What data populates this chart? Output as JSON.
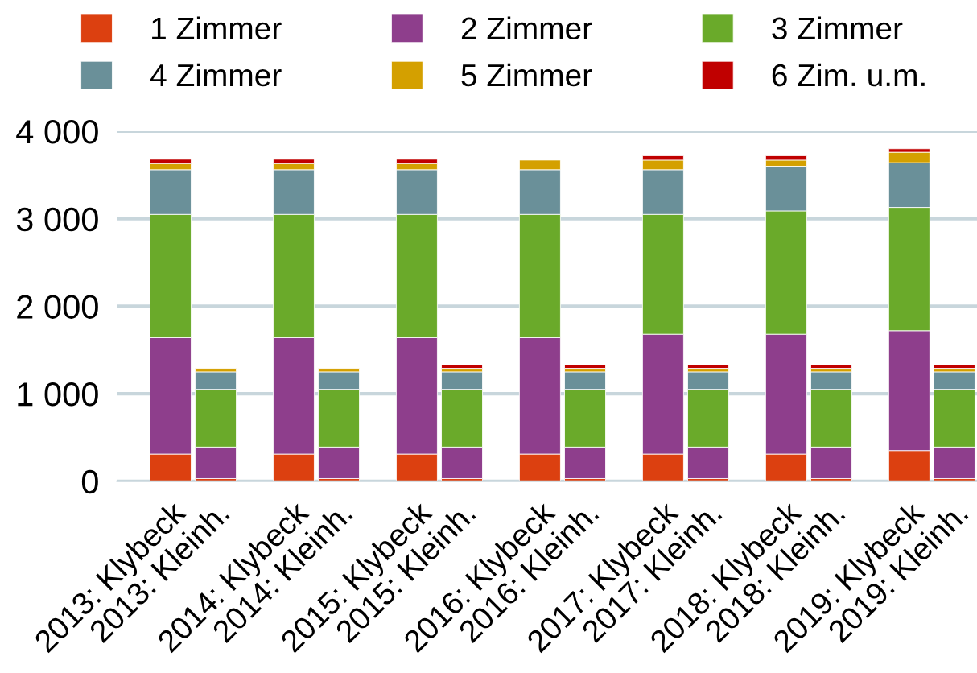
{
  "chart_data": {
    "type": "bar",
    "stacked": true,
    "categories": [
      "2013: Klybeck",
      "2013: Kleinh.",
      "2014: Klybeck",
      "2014: Kleinh.",
      "2015: Klybeck",
      "2015: Kleinh.",
      "2016: Klybeck",
      "2016: Kleinh.",
      "2017: Klybeck",
      "2017: Kleinh.",
      "2018: Klybeck",
      "2018: Kleinh.",
      "2019: Klybeck",
      "2019: Kleinh."
    ],
    "series": [
      {
        "name": "1 Zimmer",
        "color": "#dc4010",
        "values": [
          310,
          30,
          310,
          30,
          310,
          30,
          310,
          30,
          310,
          30,
          310,
          30,
          350,
          30
        ]
      },
      {
        "name": "2 Zimmer",
        "color": "#8e3e8c",
        "values": [
          1330,
          360,
          1330,
          360,
          1330,
          360,
          1330,
          360,
          1370,
          360,
          1370,
          360,
          1370,
          360
        ]
      },
      {
        "name": "3 Zimmer",
        "color": "#6aaa2a",
        "values": [
          1410,
          660,
          1410,
          660,
          1410,
          660,
          1410,
          660,
          1370,
          660,
          1410,
          660,
          1410,
          660
        ]
      },
      {
        "name": "4 Zimmer",
        "color": "#6a9099",
        "values": [
          510,
          200,
          510,
          200,
          510,
          200,
          510,
          200,
          510,
          200,
          510,
          200,
          510,
          200
        ]
      },
      {
        "name": "5 Zimmer",
        "color": "#d4a000",
        "values": [
          70,
          40,
          70,
          40,
          70,
          40,
          110,
          40,
          110,
          40,
          70,
          40,
          120,
          40
        ]
      },
      {
        "name": "6 Zim. u.m.",
        "color": "#c00000",
        "values": [
          50,
          0,
          50,
          0,
          50,
          40,
          0,
          40,
          50,
          40,
          50,
          40,
          40,
          40
        ]
      }
    ],
    "ylim": [
      0,
      4000
    ],
    "yticks": [
      {
        "value": 0,
        "label": "0"
      },
      {
        "value": 1000,
        "label": "1 000"
      },
      {
        "value": 2000,
        "label": "2 000"
      },
      {
        "value": 3000,
        "label": "3 000"
      },
      {
        "value": 4000,
        "label": "4 000"
      }
    ],
    "grid": "y",
    "legend": "top"
  }
}
